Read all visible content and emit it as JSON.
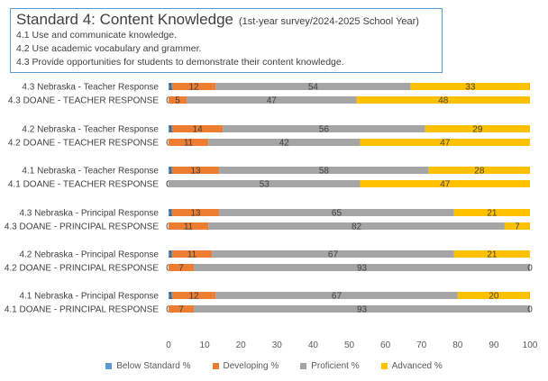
{
  "title": {
    "main": "Standard 4: Content Knowledge",
    "subtitle": "(1st-year survey/2024-2025 School Year)",
    "standards": [
      "4.1 Use and communicate knowledge.",
      "4.2 Use academic vocabulary and grammer.",
      "4.3 Provide opportunities for students to demonstrate their content knowledge."
    ]
  },
  "colors": {
    "Below Standard %": "#5b9bd5",
    "Developing %": "#ed7d31",
    "Proficient %": "#a5a5a5",
    "Advanced %": "#ffc000"
  },
  "chart_data": {
    "type": "bar",
    "orientation": "horizontal",
    "stacked": true,
    "categories": [
      "4.3 Nebraska - Teacher Response",
      "4.3 DOANE - TEACHER RESPONSE",
      "4.2 Nebraska - Teacher Response",
      "4.2 DOANE - TEACHER RESPONSE",
      "4.1 Nebraska - Teacher Response",
      "4.1 DOANE - TEACHER RESPONSE",
      "4.3 Nebraska - Principal Response",
      "4.3  DOANE  - PRINCIPAL RESPONSE",
      "4.2 Nebraska - Principal Response",
      "4.2  DOANE  - PRINCIPAL RESPONSE",
      "4.1 Nebraska - Principal Response",
      "4.1 DOANE  - PRINCIPAL RESPONSE"
    ],
    "series": [
      {
        "name": "Below Standard %",
        "values": [
          1,
          0,
          1,
          0,
          1,
          0,
          1,
          0,
          1,
          0,
          1,
          0
        ]
      },
      {
        "name": "Developing %",
        "values": [
          12,
          5,
          14,
          11,
          13,
          0,
          13,
          11,
          11,
          7,
          12,
          7
        ]
      },
      {
        "name": "Proficient %",
        "values": [
          54,
          47,
          56,
          42,
          58,
          53,
          65,
          82,
          67,
          93,
          67,
          93
        ]
      },
      {
        "name": "Advanced %",
        "values": [
          33,
          48,
          29,
          47,
          28,
          47,
          21,
          7,
          21,
          0,
          20,
          0
        ]
      }
    ],
    "xlim": [
      0,
      100
    ],
    "xticks": [
      0,
      10,
      20,
      30,
      40,
      50,
      60,
      70,
      80,
      90,
      100
    ],
    "legend": "bottom",
    "grid": false
  }
}
